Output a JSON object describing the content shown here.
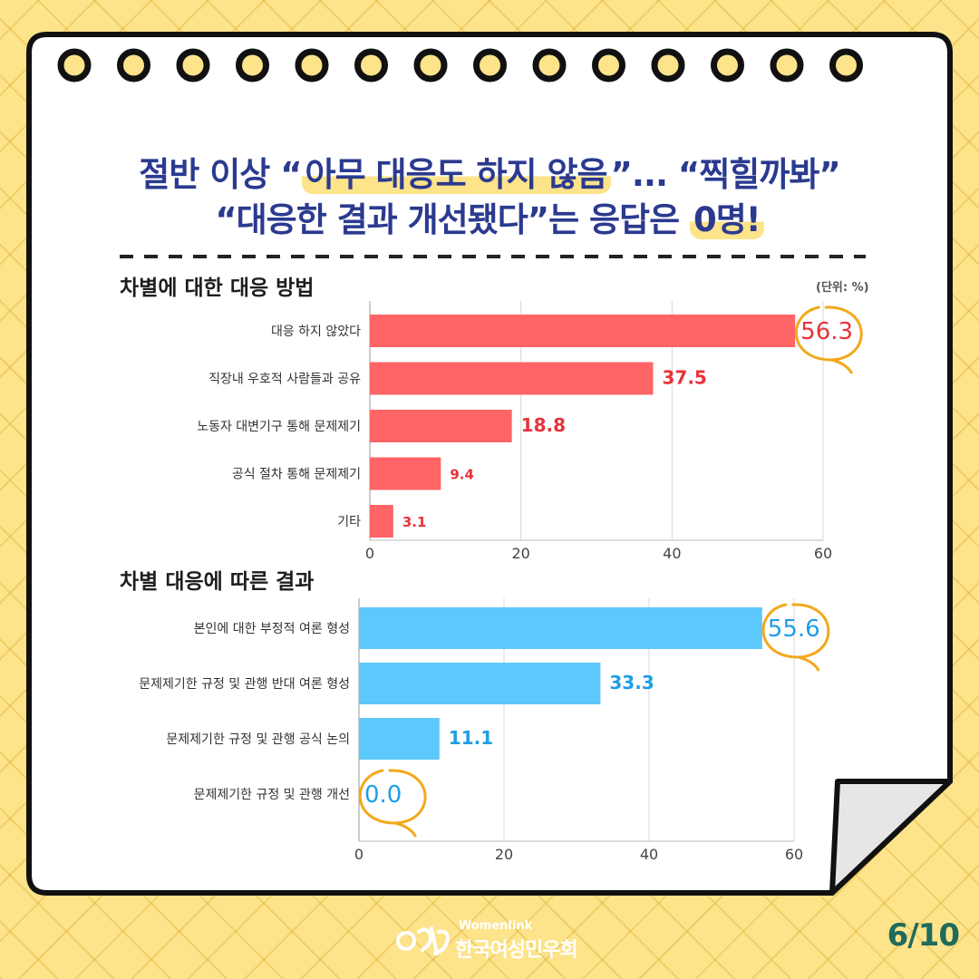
{
  "title": {
    "line1_a": "절반 이상 “",
    "line1_hl": "아무 대응도 하지 않음",
    "line1_b": "”... “찍힐까봐”",
    "line2_a": "“대응한 결과 개선됐다”는 응답은 ",
    "line2_hl": "0명!"
  },
  "unit": "(단위: %)",
  "colors": {
    "red_bar": "#ff6466",
    "red_label": "#e8323a",
    "blue_bar": "#5dc8fb",
    "blue_label": "#1f9ee6",
    "title": "#2b3a8f",
    "circle": "#f2a91c"
  },
  "chart_data": [
    {
      "type": "bar",
      "orientation": "horizontal",
      "title": "차별에 대한 대응 방법",
      "categories": [
        "대응 하지 않았다",
        "직장내 우호적 사람들과 공유",
        "노동자 대변기구 통해 문제제기",
        "공식 절차 통해 문제제기",
        "기타"
      ],
      "values": [
        56.3,
        37.5,
        18.8,
        9.4,
        3.1
      ],
      "value_labels": [
        "56.3",
        "37.5",
        "18.8",
        "9.4",
        "3.1"
      ],
      "xlim": [
        0,
        60
      ],
      "xticks": [
        "0",
        "20",
        "40",
        "60"
      ],
      "grid": "vertical",
      "highlighted": [
        "56.3"
      ]
    },
    {
      "type": "bar",
      "orientation": "horizontal",
      "title": "차별 대응에 따른 결과",
      "categories": [
        "본인에 대한 부정적 여론 형성",
        "문제제기한 규정 및 관행 반대 여론 형성",
        "문제제기한 규정 및 관행 공식 논의",
        "문제제기한 규정 및 관행 개선"
      ],
      "values": [
        55.6,
        33.3,
        11.1,
        0.0
      ],
      "value_labels": [
        "55.6",
        "33.3",
        "11.1",
        "0.0"
      ],
      "xlim": [
        0,
        60
      ],
      "xticks": [
        "0",
        "20",
        "40",
        "60"
      ],
      "grid": "vertical",
      "highlighted": [
        "55.6",
        "0.0"
      ]
    }
  ],
  "footer": {
    "logo_en": "Womenlink",
    "logo_ko": "한국여성민우회",
    "page": "6/10"
  },
  "icons": [
    "spiral-ring-icon",
    "womenlink-logo-icon"
  ]
}
